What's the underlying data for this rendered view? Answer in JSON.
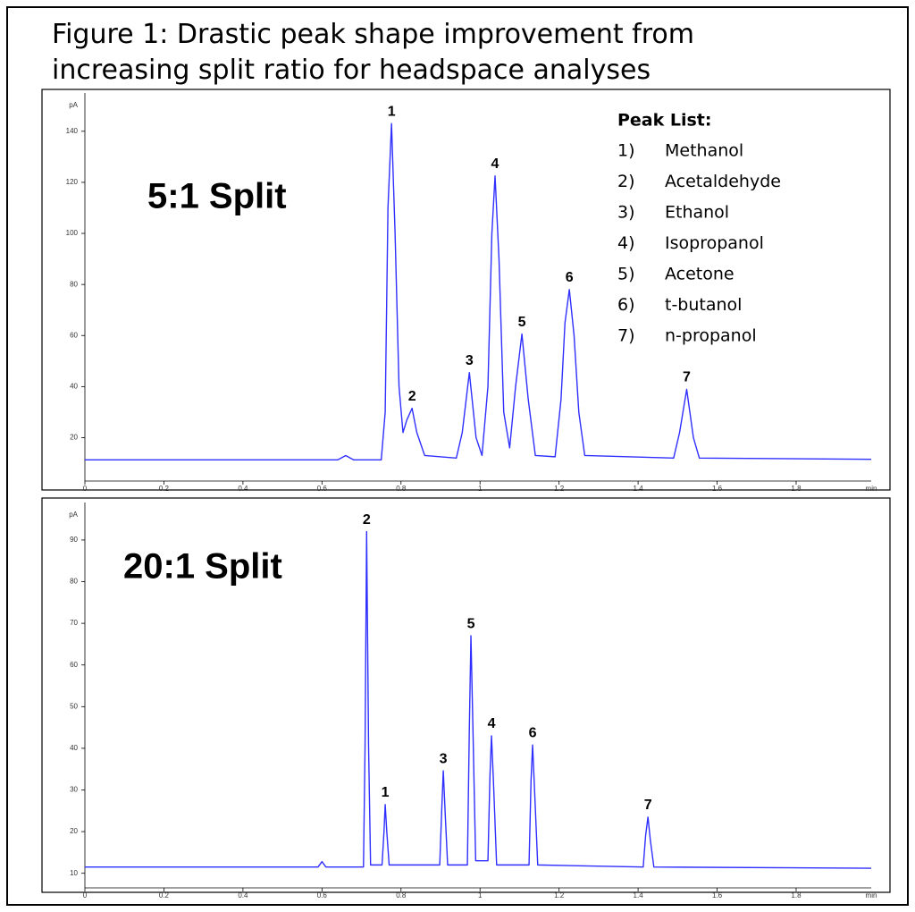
{
  "figure": {
    "title_lines": [
      "Figure 1: Drastic peak shape improvement from",
      "increasing split ratio for headspace analyses"
    ]
  },
  "chart_data": [
    {
      "type": "line",
      "panel_label": "5:1 Split",
      "color": "#2f2fff",
      "xlabel": "min",
      "ylabel": "pA",
      "xlim": [
        0,
        1.99
      ],
      "ylim": [
        3,
        155
      ],
      "xticks": [
        0,
        0.2,
        0.4,
        0.6,
        0.8,
        1,
        1.2,
        1.4,
        1.6,
        1.8
      ],
      "yticks": [
        20,
        40,
        60,
        80,
        100,
        120,
        140
      ],
      "x": [
        0,
        0.64,
        0.66,
        0.68,
        0.75,
        0.76,
        0.767,
        0.776,
        0.785,
        0.795,
        0.805,
        0.815,
        0.828,
        0.84,
        0.86,
        0.94,
        0.955,
        0.973,
        0.99,
        1.005,
        1.02,
        1.03,
        1.038,
        1.048,
        1.06,
        1.075,
        1.09,
        1.106,
        1.122,
        1.14,
        1.19,
        1.205,
        1.215,
        1.226,
        1.238,
        1.25,
        1.265,
        1.49,
        1.505,
        1.523,
        1.54,
        1.555,
        1.99
      ],
      "values": [
        11.3,
        11.3,
        13,
        11.3,
        11.3,
        30,
        110,
        143,
        100,
        40,
        22,
        27,
        31.5,
        22,
        13,
        12,
        22,
        45.5,
        20,
        13,
        40,
        100,
        122.5,
        90,
        30,
        16,
        40,
        60.6,
        35,
        13,
        12.5,
        35,
        65,
        78,
        60,
        30,
        13,
        12,
        22,
        38.9,
        20,
        12,
        11.5
      ],
      "annotations": [
        {
          "text": "1",
          "x": 0.776,
          "y": 143
        },
        {
          "text": "2",
          "x": 0.828,
          "y": 31.5
        },
        {
          "text": "3",
          "x": 0.973,
          "y": 45.5
        },
        {
          "text": "4",
          "x": 1.038,
          "y": 122.5
        },
        {
          "text": "5",
          "x": 1.106,
          "y": 60.6
        },
        {
          "text": "6",
          "x": 1.226,
          "y": 78
        },
        {
          "text": "7",
          "x": 1.523,
          "y": 38.9
        }
      ],
      "peak_list": {
        "title": "Peak List:",
        "items": [
          {
            "number": "1)",
            "name": "Methanol"
          },
          {
            "number": "2)",
            "name": "Acetaldehyde"
          },
          {
            "number": "3)",
            "name": "Ethanol"
          },
          {
            "number": "4)",
            "name": "Isopropanol"
          },
          {
            "number": "5)",
            "name": "Acetone"
          },
          {
            "number": "6)",
            "name": "t-butanol"
          },
          {
            "number": "7)",
            "name": "n-propanol"
          }
        ]
      }
    },
    {
      "type": "line",
      "panel_label": "20:1 Split",
      "color": "#2f2fff",
      "xlabel": "min",
      "ylabel": "pA",
      "xlim": [
        0,
        1.99
      ],
      "ylim": [
        6.5,
        99
      ],
      "xticks": [
        0,
        0.2,
        0.4,
        0.6,
        0.8,
        1,
        1.2,
        1.4,
        1.6,
        1.8
      ],
      "yticks": [
        10,
        20,
        30,
        40,
        50,
        60,
        70,
        80,
        90
      ],
      "x": [
        0,
        0.59,
        0.6,
        0.61,
        0.705,
        0.709,
        0.713,
        0.718,
        0.723,
        0.752,
        0.757,
        0.76,
        0.764,
        0.77,
        0.898,
        0.903,
        0.907,
        0.912,
        0.918,
        0.968,
        0.973,
        0.977,
        0.982,
        0.989,
        1.02,
        1.025,
        1.029,
        1.034,
        1.042,
        1.124,
        1.129,
        1.133,
        1.138,
        1.146,
        1.413,
        1.419,
        1.425,
        1.431,
        1.44,
        1.99
      ],
      "values": [
        11.5,
        11.5,
        12.8,
        11.5,
        11.5,
        40,
        92,
        40,
        12,
        12,
        20,
        26.5,
        20,
        12,
        12,
        25,
        34.6,
        24,
        12,
        12,
        45,
        67,
        45,
        13,
        13,
        33,
        43,
        32,
        12,
        12,
        32,
        40.8,
        30,
        12,
        11.5,
        19,
        23.5,
        18,
        11.5,
        11.2
      ],
      "annotations": [
        {
          "text": "2",
          "x": 0.713,
          "y": 92
        },
        {
          "text": "1",
          "x": 0.76,
          "y": 26.5
        },
        {
          "text": "3",
          "x": 0.907,
          "y": 34.6
        },
        {
          "text": "5",
          "x": 0.977,
          "y": 67
        },
        {
          "text": "4",
          "x": 1.029,
          "y": 43
        },
        {
          "text": "6",
          "x": 1.133,
          "y": 40.8
        },
        {
          "text": "7",
          "x": 1.425,
          "y": 23.5
        }
      ]
    }
  ]
}
